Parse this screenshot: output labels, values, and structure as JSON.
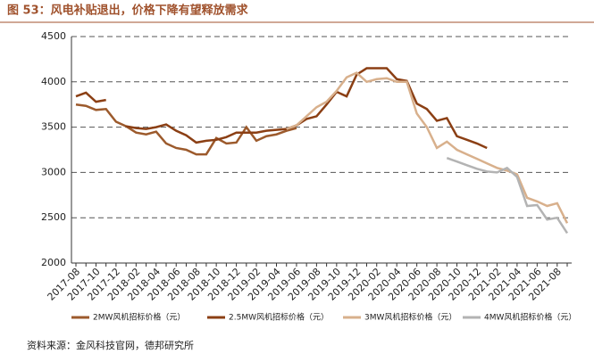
{
  "chart_data": {
    "type": "line",
    "title": "图 53：风电补贴退出，价格下降有望释放需求",
    "source": "资料来源：金风科技官网，德邦研究所",
    "categories": [
      "2017-08",
      null,
      "2017-10",
      null,
      "2017-12",
      null,
      "2018-02",
      null,
      "2018-04",
      null,
      "2018-06",
      null,
      "2018-08",
      null,
      "2018-10",
      null,
      "2018-12",
      null,
      "2019-02",
      null,
      "2019-04",
      null,
      "2019-06",
      null,
      "2019-08",
      null,
      "2019-10",
      null,
      "2019-12",
      null,
      "2020-02",
      null,
      "2020-04",
      null,
      "2020-06",
      null,
      "2020-08",
      null,
      "2020-10",
      null,
      "2020-12",
      null,
      "2021-02",
      null,
      "2021-04",
      null,
      "2021-06",
      null,
      "2021-08",
      null
    ],
    "series": [
      {
        "name": "2MW风机招标价格（元）",
        "color": "#9c5a2c",
        "values": [
          3750,
          3735,
          3690,
          3700,
          3560,
          3510,
          3440,
          3420,
          3450,
          3320,
          3270,
          3250,
          3200,
          3200,
          3380,
          3320,
          3330,
          3500,
          3350,
          3400,
          3420,
          3460,
          3490,
          null,
          null,
          null,
          null,
          null,
          null,
          null,
          null,
          null,
          null,
          null,
          null,
          null,
          null,
          null,
          null,
          null,
          null,
          null,
          null,
          null,
          null,
          null,
          null,
          null,
          null,
          null
        ]
      },
      {
        "name": "2.5MW风机招标价格（元）",
        "color": "#8b3f14",
        "values": [
          3840,
          3880,
          3780,
          3800,
          null,
          3510,
          3490,
          3480,
          3500,
          3530,
          3460,
          3410,
          3330,
          3350,
          3360,
          3390,
          3440,
          3440,
          3440,
          3460,
          3470,
          3480,
          3520,
          3590,
          3620,
          3750,
          3890,
          3840,
          4080,
          4150,
          4150,
          4150,
          4030,
          4010,
          3760,
          3700,
          3570,
          3600,
          3400,
          3360,
          3320,
          3270,
          null,
          null,
          null,
          null,
          null,
          null,
          null,
          null
        ]
      },
      {
        "name": "3MW风机招标价格（元）",
        "color": "#d8b08c",
        "values": [
          null,
          null,
          null,
          null,
          null,
          null,
          null,
          null,
          null,
          null,
          null,
          null,
          null,
          null,
          null,
          null,
          null,
          null,
          null,
          null,
          null,
          3480,
          3520,
          3620,
          3720,
          3780,
          3900,
          4050,
          4100,
          4000,
          4030,
          4040,
          4000,
          4000,
          3650,
          3500,
          3270,
          3340,
          3250,
          3200,
          3150,
          3100,
          3050,
          3020,
          2980,
          2720,
          2680,
          2630,
          2660,
          2440
        ]
      },
      {
        "name": "4MW风机招标价格（元）",
        "color": "#b3b3b3",
        "values": [
          null,
          null,
          null,
          null,
          null,
          null,
          null,
          null,
          null,
          null,
          null,
          null,
          null,
          null,
          null,
          null,
          null,
          null,
          null,
          null,
          null,
          null,
          null,
          null,
          null,
          null,
          null,
          null,
          null,
          null,
          null,
          null,
          null,
          null,
          null,
          null,
          null,
          3160,
          3120,
          3080,
          3040,
          3010,
          3000,
          3050,
          2950,
          2630,
          2640,
          2480,
          2500,
          2330
        ]
      }
    ],
    "ylim": [
      2000,
      4500
    ],
    "yticks": [
      2000,
      2500,
      3000,
      3500,
      4000,
      4500
    ],
    "grid": true
  }
}
